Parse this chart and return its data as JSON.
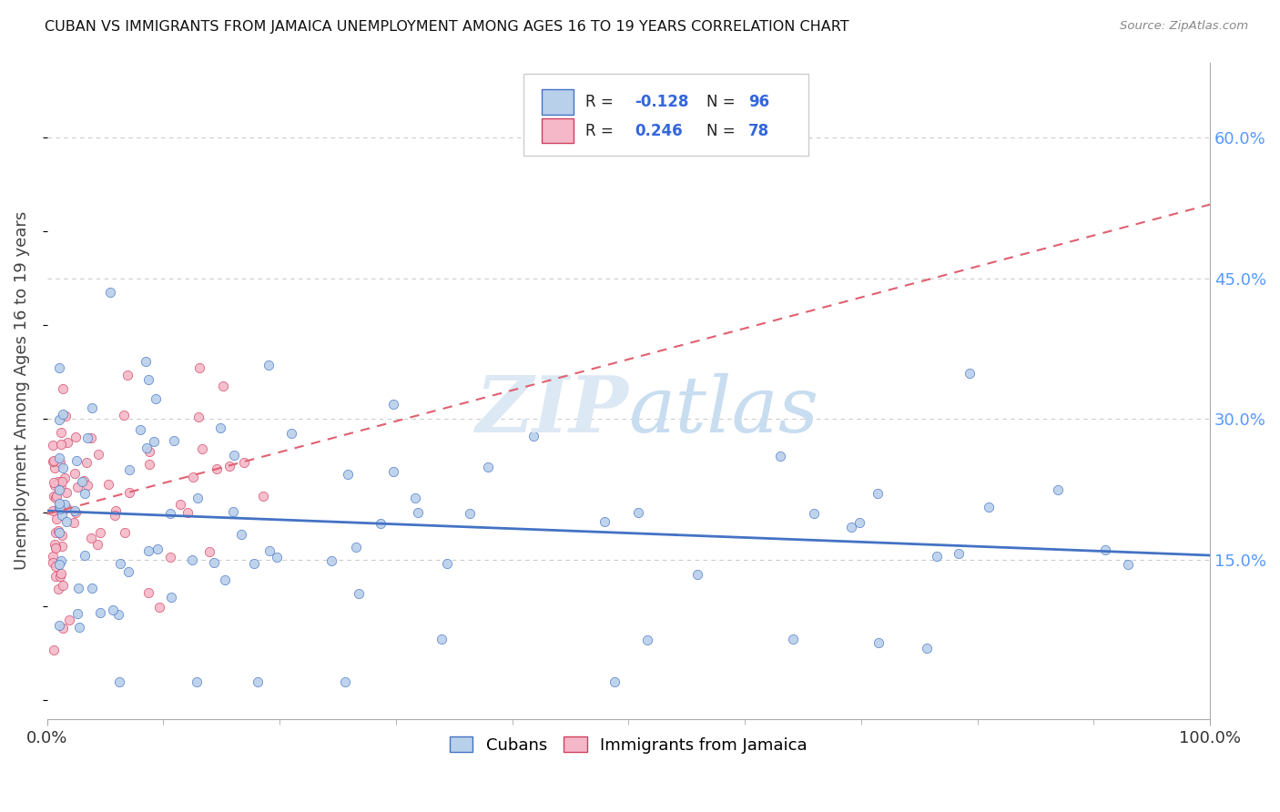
{
  "title": "CUBAN VS IMMIGRANTS FROM JAMAICA UNEMPLOYMENT AMONG AGES 16 TO 19 YEARS CORRELATION CHART",
  "source": "Source: ZipAtlas.com",
  "ylabel": "Unemployment Among Ages 16 to 19 years",
  "yticks_labels": [
    "15.0%",
    "30.0%",
    "45.0%",
    "60.0%"
  ],
  "ytick_vals": [
    0.15,
    0.3,
    0.45,
    0.6
  ],
  "xlim": [
    0.0,
    1.0
  ],
  "ylim": [
    -0.02,
    0.68
  ],
  "legend_labels": [
    "Cubans",
    "Immigrants from Jamaica"
  ],
  "cubans_R": -0.128,
  "cubans_N": 96,
  "jamaica_R": 0.246,
  "jamaica_N": 78,
  "color_cubans_fill": "#b8d0ea",
  "color_cubans_edge": "#4472c4",
  "color_jamaica_fill": "#f4b8c8",
  "color_jamaica_edge": "#d04060",
  "color_cubans_line": "#4472c4",
  "color_jamaica_line": "#e06070",
  "watermark_color": "#dce8f4",
  "grid_color": "#cccccc",
  "right_tick_color": "#5599ff"
}
